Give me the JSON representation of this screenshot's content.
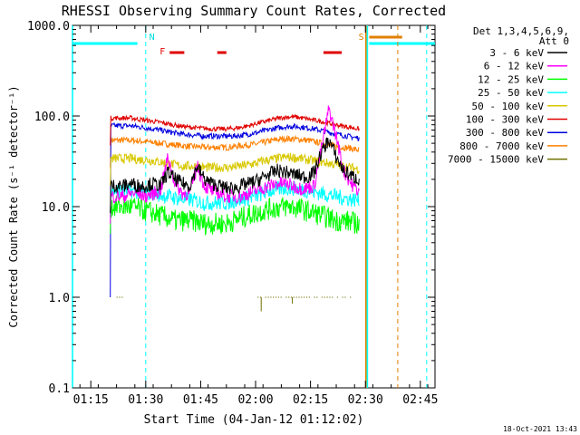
{
  "chart_data": {
    "type": "line",
    "title": "RHESSI Observing Summary Count Rates, Corrected",
    "xlabel": "Start Time (04-Jan-12 01:12:02)",
    "ylabel": "Corrected Count Rate (s⁻¹ detector⁻¹)",
    "yscale": "log",
    "ylim": [
      0.1,
      1000
    ],
    "xlim_minutes_from_start": [
      -2.03,
      96.97
    ],
    "x_tick_labels": [
      "01:15",
      "01:30",
      "01:45",
      "02:00",
      "02:15",
      "02:30",
      "02:45"
    ],
    "x_tick_minutes": [
      2.97,
      17.97,
      32.97,
      47.97,
      62.97,
      77.97,
      92.97
    ],
    "y_tick_labels": [
      "0.1",
      "1.0",
      "10.0",
      "100.0",
      "1000.0"
    ],
    "y_tick_values": [
      0.1,
      1,
      10,
      100,
      1000
    ],
    "legend": {
      "position": "top-right",
      "header": [
        "Det 1,3,4,5,6,9,",
        "Att 0"
      ],
      "entries": [
        {
          "label": "3 - 6 keV",
          "color": "#000000"
        },
        {
          "label": "6 - 12 keV",
          "color": "#ff00ff"
        },
        {
          "label": "12 - 25 keV",
          "color": "#00ff00"
        },
        {
          "label": "25 - 50 keV",
          "color": "#00ffff"
        },
        {
          "label": "50 - 100 keV",
          "color": "#d8c800"
        },
        {
          "label": "100 - 300 keV",
          "color": "#e00000"
        },
        {
          "label": "300 - 800 keV",
          "color": "#0000e0"
        },
        {
          "label": "800 - 7000 keV",
          "color": "#ff8000"
        },
        {
          "label": "7000 - 15000 keV",
          "color": "#707000"
        }
      ]
    },
    "series_x_minutes": [
      12,
      14,
      16,
      18,
      20,
      22,
      24,
      26,
      28,
      30,
      32,
      34,
      36,
      38,
      40,
      42,
      44,
      46,
      48,
      50,
      52,
      54,
      56,
      58,
      60,
      62,
      64,
      66,
      68,
      70,
      72,
      74,
      76
    ],
    "series": [
      {
        "name": "3 - 6 keV",
        "color": "#000000",
        "values": [
          17,
          18,
          17,
          17,
          18,
          17,
          24,
          20,
          18,
          17,
          28,
          20,
          18,
          17,
          16,
          16,
          17,
          18,
          19,
          21,
          23,
          25,
          24,
          23,
          22,
          21,
          24,
          40,
          55,
          35,
          25,
          22,
          20
        ]
      },
      {
        "name": "6 - 12 keV",
        "color": "#ff00ff",
        "values": [
          13,
          14,
          14,
          13,
          14,
          15,
          35,
          18,
          14,
          14,
          28,
          17,
          15,
          14,
          13,
          13,
          13,
          14,
          15,
          16,
          17,
          18,
          18,
          17,
          16,
          16,
          17,
          45,
          120,
          60,
          25,
          18,
          15
        ]
      },
      {
        "name": "12 - 25 keV",
        "color": "#00ff00",
        "values": [
          10,
          10,
          9.5,
          9,
          8.5,
          8,
          7.5,
          7,
          7,
          7,
          6.8,
          6.5,
          6.5,
          6.5,
          6.5,
          7,
          7.5,
          8,
          8.5,
          9,
          9.5,
          9.8,
          10,
          10,
          9.5,
          9,
          8.5,
          8,
          7.5,
          7,
          7,
          6.8,
          6.5
        ]
      },
      {
        "name": "25 - 50 keV",
        "color": "#00ffff",
        "values": [
          15,
          15,
          14.5,
          14,
          14,
          13.5,
          13,
          12.5,
          12,
          12,
          11.5,
          11,
          11,
          11,
          11,
          11.5,
          12,
          12.5,
          13,
          14,
          15,
          15.5,
          16,
          16,
          15.5,
          15,
          14.5,
          14,
          13.5,
          13,
          12.5,
          12,
          12
        ]
      },
      {
        "name": "50 - 100 keV",
        "color": "#d8c800",
        "values": [
          34,
          34,
          33,
          33,
          32,
          31,
          30,
          29,
          28,
          28,
          28,
          27,
          27,
          27,
          27,
          27.5,
          28,
          29,
          30,
          32,
          33,
          34,
          35,
          35,
          34,
          33,
          32,
          31,
          30,
          29,
          28,
          27,
          26
        ]
      },
      {
        "name": "100 - 300 keV",
        "color": "#e00000",
        "values": [
          95,
          95,
          92,
          90,
          87,
          85,
          82,
          79,
          77,
          75,
          74,
          73,
          72,
          72,
          72,
          73,
          75,
          78,
          82,
          86,
          90,
          94,
          97,
          98,
          96,
          93,
          90,
          87,
          83,
          80,
          77,
          75,
          72
        ]
      },
      {
        "name": "300 - 800 keV",
        "color": "#0000e0",
        "values": [
          78,
          78,
          76,
          74,
          72,
          70,
          67,
          65,
          63,
          62,
          61,
          60,
          60,
          60,
          60,
          60,
          61,
          63,
          65,
          68,
          71,
          74,
          76,
          77,
          76,
          74,
          72,
          69,
          66,
          63,
          61,
          59,
          57
        ]
      },
      {
        "name": "800 - 7000 keV",
        "color": "#ff8000",
        "values": [
          54,
          54,
          53,
          52,
          51,
          50,
          49,
          48,
          47,
          46,
          46,
          45,
          45,
          45,
          45,
          46,
          47,
          48,
          49,
          51,
          53,
          55,
          56,
          56,
          55,
          54,
          52,
          50,
          48,
          46,
          45,
          44,
          42
        ]
      }
    ],
    "low_energy_7000_15000": {
      "name": "7000 - 15000 keV",
      "color": "#707000",
      "level": 1.0
    },
    "annotations": {
      "flags": [
        {
          "letter": "N",
          "color": "#00e0e0",
          "minute": 18.9
        },
        {
          "letter": "F",
          "color": "#e00000",
          "minute": 21.8
        },
        {
          "letter": "S",
          "color": "#e08000",
          "minute": 76.1
        }
      ],
      "flare_bars_minutes": [
        [
          24.5,
          28.5
        ],
        [
          37.5,
          40
        ],
        [
          66.5,
          71.5
        ]
      ],
      "saa_bar_minutes": [
        79,
        88
      ],
      "night_bars_minutes": [
        [
          -2.03,
          15.7
        ],
        [
          79,
          96.97
        ]
      ],
      "vertical_lines": [
        {
          "minute": -2.03,
          "color": "#00ffff",
          "style": "solid"
        },
        {
          "minute": 17.97,
          "color": "#00ffff",
          "style": "dashed"
        },
        {
          "minute": 78.5,
          "color": "#00ffff",
          "style": "solid"
        },
        {
          "minute": 78.1,
          "color": "#e08000",
          "style": "solid"
        },
        {
          "minute": 86.8,
          "color": "#e08000",
          "style": "dashed"
        },
        {
          "minute": 94.7,
          "color": "#00ffff",
          "style": "dashed"
        }
      ]
    },
    "timestamp": "18-Oct-2021 13:43"
  }
}
